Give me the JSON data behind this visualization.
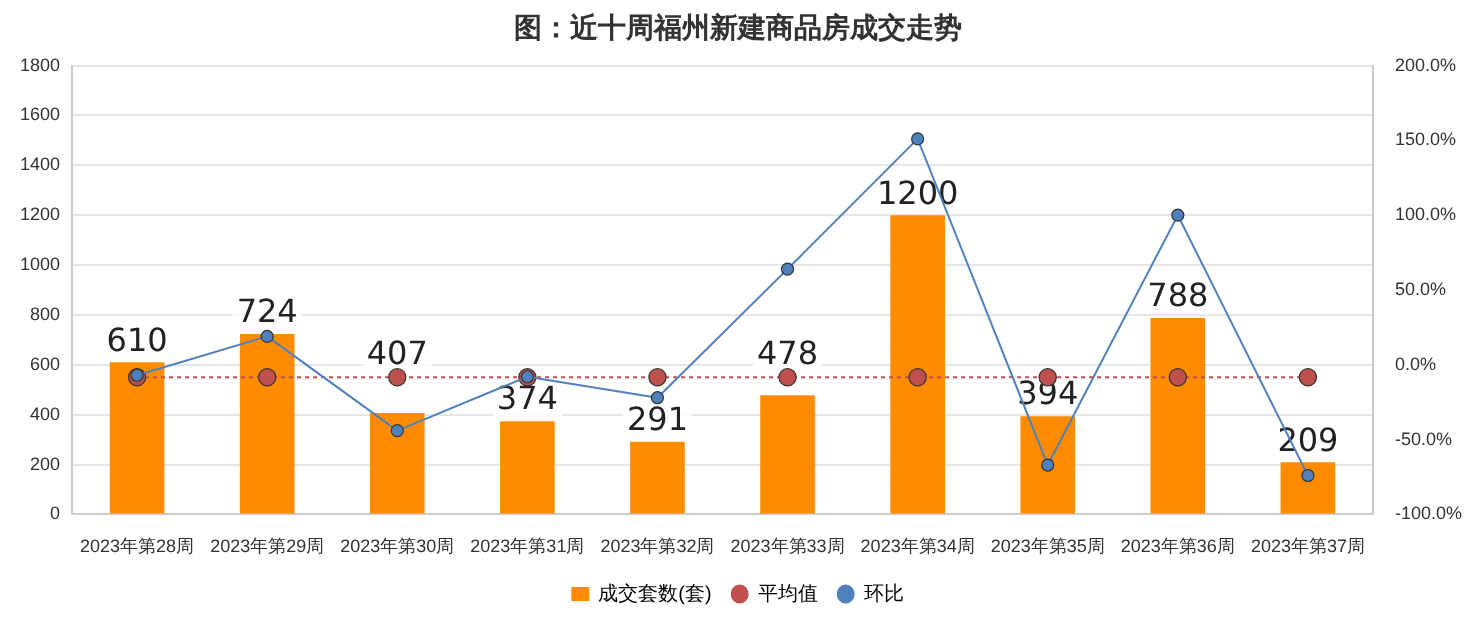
{
  "chart_data": {
    "type": "bar",
    "title": "图：近十周福州新建商品房成交走势",
    "categories": [
      "2023年第28周",
      "2023年第29周",
      "2023年第30周",
      "2023年第31周",
      "2023年第32周",
      "2023年第33周",
      "2023年第34周",
      "2023年第35周",
      "2023年第36周",
      "2023年第37周"
    ],
    "series": [
      {
        "name": "成交套数(套)",
        "color": "#ff8c00",
        "values": [
          610,
          724,
          407,
          374,
          291,
          478,
          1200,
          394,
          788,
          209
        ],
        "value_labels": [
          "610",
          "724",
          "407",
          "374",
          "291",
          "478",
          "1200",
          "394",
          "788",
          "209"
        ]
      },
      {
        "name": "平均值",
        "type": "line",
        "color": "#c0504d",
        "line_style": "dotted",
        "values": [
          550,
          550,
          550,
          550,
          550,
          550,
          550,
          550,
          550,
          550
        ]
      },
      {
        "name": "环比",
        "type": "line",
        "color": "#4f81bd",
        "axis": "y2",
        "values": [
          -7,
          19,
          -44,
          -8,
          -22,
          64,
          151,
          -67,
          100,
          -74
        ]
      }
    ],
    "ylim": [
      0,
      1800
    ],
    "yticks": [
      0,
      200,
      400,
      600,
      800,
      1000,
      1200,
      1400,
      1600,
      1800
    ],
    "y2lim": [
      -100,
      200
    ],
    "y2ticks": [
      {
        "value": -100,
        "label": "-100.0%"
      },
      {
        "value": -50,
        "label": "-50.0%"
      },
      {
        "value": 0,
        "label": "0.0%"
      },
      {
        "value": 50,
        "label": "50.0%"
      },
      {
        "value": 100,
        "label": "100.0%"
      },
      {
        "value": 150,
        "label": "150.0%"
      },
      {
        "value": 200,
        "label": "200.0%"
      }
    ],
    "grid": "y",
    "legend": "bottom",
    "marker": "circle"
  }
}
